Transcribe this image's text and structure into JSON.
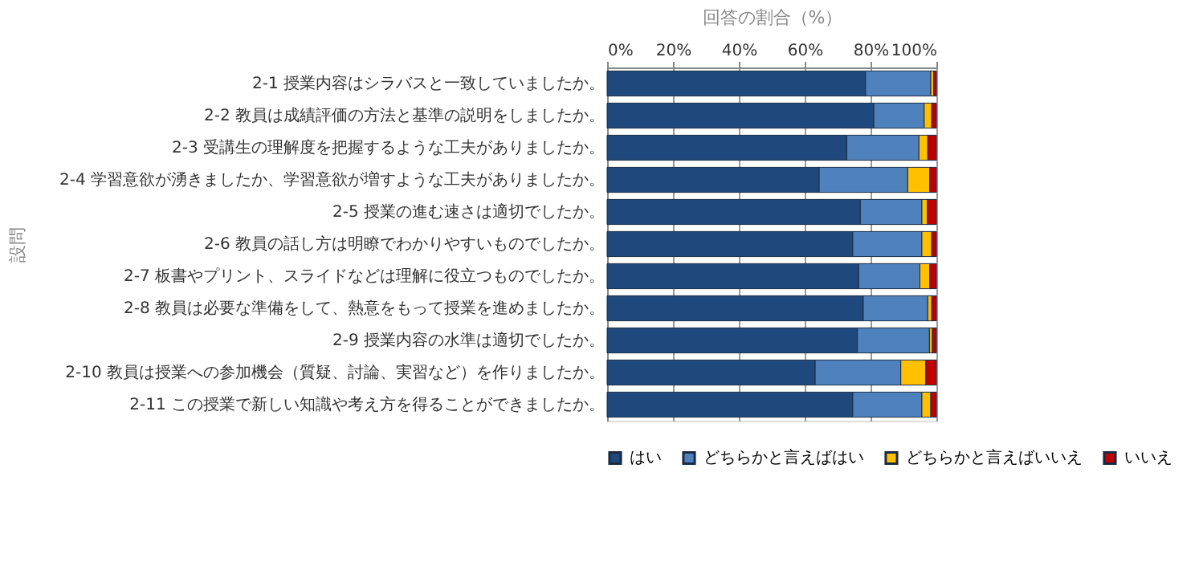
{
  "chart_data": {
    "type": "bar",
    "orientation": "horizontal",
    "stacked": true,
    "xlabel": "回答の割合（%）",
    "ylabel": "設問",
    "categories": [
      "2-1  授業内容はシラバスと一致していましたか。",
      "2-2  教員は成績評価の方法と基準の説明をしましたか。",
      "2-3  受講生の理解度を把握するような工夫がありましたか。",
      "2-4  学習意欲が湧きましたか、学習意欲が増すような工夫がありましたか。",
      "2-5  授業の進む速さは適切でしたか。",
      "2-6  教員の話し方は明瞭でわかりやすいものでしたか。",
      "2-7  板書やプリント、スライドなどは理解に役立つものでしたか。",
      "2-8  教員は必要な準備をして、熱意をもって授業を進めましたか。",
      "2-9  授業内容の水準は適切でしたか。",
      "2-10  教員は授業への参加機会（質疑、討論、実習など）を作りましたか。",
      "2-11  この授業で新しい知識や考え方を得ることができましたか。"
    ],
    "series": [
      {
        "name": "はい",
        "color": "#1f497d",
        "values": [
          78.5,
          81.0,
          72.8,
          64.4,
          76.9,
          74.6,
          76.4,
          77.8,
          76.0,
          63.2,
          74.6
        ]
      },
      {
        "name": "どちらかと言えばはい",
        "color": "#4f81bd",
        "values": [
          19.8,
          15.3,
          21.9,
          26.9,
          18.7,
          21.0,
          18.6,
          19.6,
          21.9,
          26.0,
          21.0
        ]
      },
      {
        "name": "どちらかと言えばいいえ",
        "color": "#ffc000",
        "values": [
          0.9,
          2.3,
          2.7,
          6.7,
          1.7,
          3.0,
          3.0,
          1.2,
          0.9,
          7.6,
          2.7
        ]
      },
      {
        "name": "いいえ",
        "color": "#c00000",
        "values": [
          0.8,
          1.4,
          2.6,
          2.0,
          2.7,
          1.4,
          2.0,
          1.4,
          1.2,
          3.2,
          1.7
        ]
      }
    ],
    "xlim": [
      0,
      100
    ],
    "xticks": [
      {
        "value": 0,
        "label": "0%"
      },
      {
        "value": 20,
        "label": "20%"
      },
      {
        "value": 40,
        "label": "40%"
      },
      {
        "value": 60,
        "label": "60%"
      },
      {
        "value": 80,
        "label": "80%"
      },
      {
        "value": 100,
        "label": "100%"
      }
    ],
    "grid": "x",
    "legend": "bottom"
  }
}
